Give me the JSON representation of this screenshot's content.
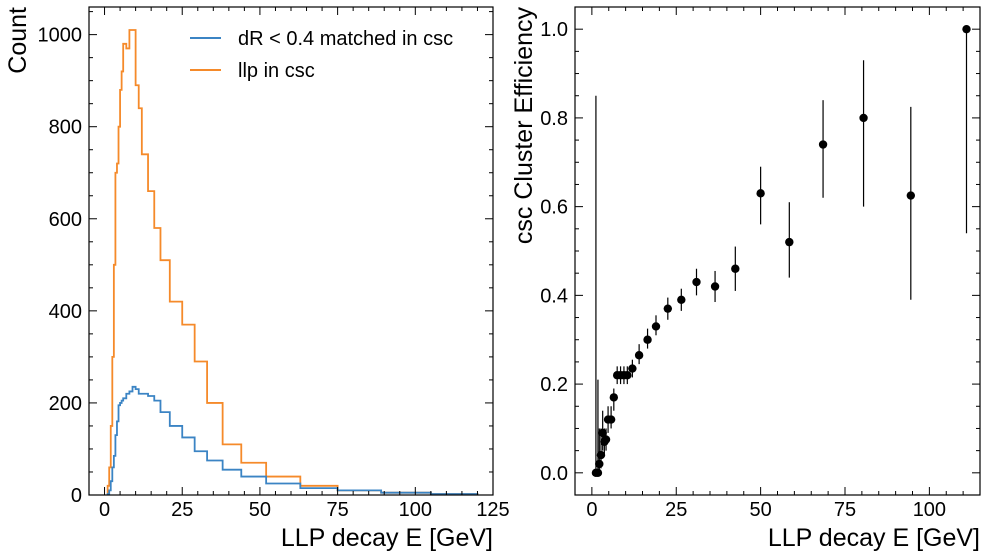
{
  "chart_data": [
    {
      "type": "line",
      "subtype": "step-histogram",
      "xlabel": "LLP decay E [GeV]",
      "ylabel": "Count",
      "xlim": [
        -5,
        125
      ],
      "ylim": [
        0,
        1060
      ],
      "xticks": [
        0,
        25,
        50,
        75,
        100,
        125
      ],
      "yticks": [
        0,
        200,
        400,
        600,
        800,
        1000
      ],
      "grid": false,
      "legend_position": "top-right",
      "bin_edges": [
        1,
        1.5,
        2,
        2.5,
        3,
        3.5,
        4,
        4.5,
        5,
        5.5,
        6,
        7,
        8,
        9,
        10,
        11,
        12,
        14,
        16,
        18,
        21,
        25,
        29,
        33,
        38,
        44,
        52,
        63,
        75,
        89,
        105,
        120
      ],
      "series": [
        {
          "name": "dR < 0.4 matched in csc",
          "color": "#3b84c4",
          "values": [
            2,
            10,
            30,
            60,
            85,
            130,
            160,
            195,
            200,
            205,
            210,
            220,
            225,
            235,
            230,
            220,
            220,
            215,
            205,
            180,
            150,
            125,
            95,
            75,
            55,
            40,
            25,
            15,
            10,
            5,
            2
          ]
        },
        {
          "name": "llp in csc",
          "color": "#f58a2a",
          "values": [
            20,
            60,
            150,
            300,
            500,
            700,
            720,
            800,
            880,
            920,
            980,
            970,
            1010,
            1010,
            890,
            840,
            740,
            660,
            580,
            510,
            420,
            370,
            290,
            200,
            110,
            70,
            40,
            20,
            10,
            5,
            2
          ]
        }
      ]
    },
    {
      "type": "scatter",
      "subtype": "errorbar",
      "xlabel": "LLP decay E [GeV]",
      "ylabel": "csc Cluster Efficiency",
      "xlim": [
        -5,
        115
      ],
      "ylim": [
        -0.05,
        1.05
      ],
      "xticks": [
        0,
        25,
        50,
        75,
        100
      ],
      "yticks": [
        0.0,
        0.2,
        0.4,
        0.6,
        0.8,
        1.0
      ],
      "grid": false,
      "color": "#000000",
      "points": [
        {
          "x": 1.2,
          "y": 0.0,
          "lo": 0.0,
          "hi": 0.85
        },
        {
          "x": 1.8,
          "y": 0.0,
          "lo": 0.0,
          "hi": 0.21
        },
        {
          "x": 2.2,
          "y": 0.02,
          "lo": 0.0,
          "hi": 0.1
        },
        {
          "x": 2.7,
          "y": 0.04,
          "lo": 0.01,
          "hi": 0.1
        },
        {
          "x": 3.2,
          "y": 0.09,
          "lo": 0.05,
          "hi": 0.14
        },
        {
          "x": 3.7,
          "y": 0.07,
          "lo": 0.04,
          "hi": 0.1
        },
        {
          "x": 4.2,
          "y": 0.075,
          "lo": 0.05,
          "hi": 0.1
        },
        {
          "x": 4.8,
          "y": 0.12,
          "lo": 0.09,
          "hi": 0.15
        },
        {
          "x": 5.7,
          "y": 0.12,
          "lo": 0.1,
          "hi": 0.15
        },
        {
          "x": 6.5,
          "y": 0.17,
          "lo": 0.14,
          "hi": 0.19
        },
        {
          "x": 7.5,
          "y": 0.22,
          "lo": 0.2,
          "hi": 0.24
        },
        {
          "x": 8.5,
          "y": 0.22,
          "lo": 0.2,
          "hi": 0.24
        },
        {
          "x": 9.5,
          "y": 0.22,
          "lo": 0.2,
          "hi": 0.24
        },
        {
          "x": 10.5,
          "y": 0.22,
          "lo": 0.2,
          "hi": 0.24
        },
        {
          "x": 12,
          "y": 0.235,
          "lo": 0.215,
          "hi": 0.255
        },
        {
          "x": 14,
          "y": 0.265,
          "lo": 0.245,
          "hi": 0.29
        },
        {
          "x": 16.5,
          "y": 0.3,
          "lo": 0.28,
          "hi": 0.325
        },
        {
          "x": 19,
          "y": 0.33,
          "lo": 0.31,
          "hi": 0.355
        },
        {
          "x": 22.5,
          "y": 0.37,
          "lo": 0.345,
          "hi": 0.395
        },
        {
          "x": 26.5,
          "y": 0.39,
          "lo": 0.365,
          "hi": 0.415
        },
        {
          "x": 31,
          "y": 0.43,
          "lo": 0.4,
          "hi": 0.46
        },
        {
          "x": 36.5,
          "y": 0.42,
          "lo": 0.385,
          "hi": 0.455
        },
        {
          "x": 42.5,
          "y": 0.46,
          "lo": 0.41,
          "hi": 0.51
        },
        {
          "x": 50,
          "y": 0.63,
          "lo": 0.56,
          "hi": 0.69
        },
        {
          "x": 58.5,
          "y": 0.52,
          "lo": 0.44,
          "hi": 0.61
        },
        {
          "x": 68.5,
          "y": 0.74,
          "lo": 0.62,
          "hi": 0.84
        },
        {
          "x": 80.5,
          "y": 0.8,
          "lo": 0.6,
          "hi": 0.93
        },
        {
          "x": 94.5,
          "y": 0.625,
          "lo": 0.39,
          "hi": 0.825
        },
        {
          "x": 111,
          "y": 1.0,
          "lo": 0.54,
          "hi": 1.0
        }
      ]
    }
  ]
}
